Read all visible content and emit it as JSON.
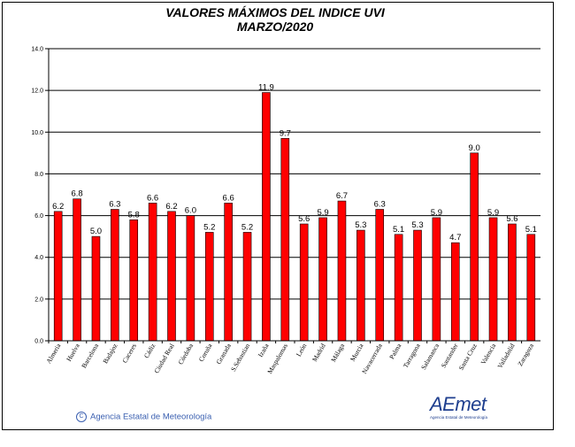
{
  "chart_data": {
    "type": "bar",
    "title": "VALORES MÁXIMOS DEL INDICE UVI",
    "subtitle": "MARZO/2020",
    "categories": [
      "Almeria",
      "Huelva",
      "Barcelona",
      "Badajoz",
      "Caceres",
      "Cádiz",
      "Ciudad Real",
      "Córdoba",
      "Coruña",
      "Granada",
      "S.Sebastian",
      "Izaña",
      "Maspalomas",
      "León",
      "Madrid",
      "Málaga",
      "Murcia",
      "Navacerrada",
      "Palma",
      "Tarragona",
      "Salamanca",
      "Santander",
      "Santa Cruz",
      "Valencia",
      "Valladolid",
      "Zaragoza"
    ],
    "values": [
      6.2,
      6.8,
      5.0,
      6.3,
      5.8,
      6.6,
      6.2,
      6.0,
      5.2,
      6.6,
      5.2,
      11.9,
      9.7,
      5.6,
      5.9,
      6.7,
      5.3,
      6.3,
      5.1,
      5.3,
      5.9,
      4.7,
      9.0,
      5.9,
      5.6,
      5.1
    ],
    "data_labels": [
      "6.2",
      "6.8",
      "5.0",
      "6.3",
      "5.8",
      "6.6",
      "6.2",
      "6.0",
      "5.2",
      "6.6",
      "5.2",
      "11.9",
      "9.7",
      "5.6",
      "5.9",
      "6.7",
      "5.3",
      "6.3",
      "5.1",
      "5.3",
      "5.9",
      "4.7",
      "9.0",
      "5.9",
      "5.6",
      "5.1"
    ],
    "ylim": [
      0,
      14
    ],
    "yticks": [
      0,
      2,
      4,
      6,
      8,
      10,
      12,
      14
    ],
    "ytick_labels": [
      "0.0",
      "2.0",
      "4.0",
      "6.0",
      "8.0",
      "10.0",
      "12.0",
      "14.0"
    ],
    "grid": true,
    "bar_color": "#ff0000",
    "bar_edge_color": "#000000"
  },
  "footer": {
    "copyright_symbol": "C",
    "agency": "Agencia Estatal de Meteorología",
    "logo_word": "AEmet",
    "logo_sub": "Agencia Estatal de Meteorología"
  }
}
